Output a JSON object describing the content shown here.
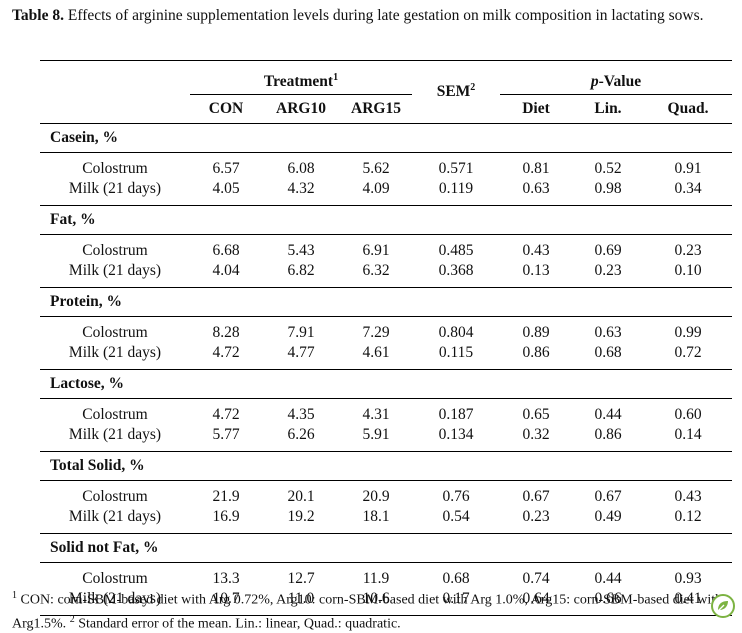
{
  "caption": {
    "label": "Table 8.",
    "text": "Effects of arginine supplementation levels during late gestation on milk composition in lactating sows."
  },
  "header": {
    "treatment": "Treatment",
    "treatment_sup": "1",
    "sem": "SEM",
    "sem_sup": "2",
    "pvalue_p": "p",
    "pvalue_rest": "-Value",
    "cols": [
      "CON",
      "ARG10",
      "ARG15",
      "Diet",
      "Lin.",
      "Quad."
    ]
  },
  "groups": [
    {
      "title": "Casein, %",
      "rows": [
        {
          "label": "Colostrum",
          "values": [
            "6.57",
            "6.08",
            "5.62",
            "0.571",
            "0.81",
            "0.52",
            "0.91"
          ]
        },
        {
          "label": "Milk (21 days)",
          "values": [
            "4.05",
            "4.32",
            "4.09",
            "0.119",
            "0.63",
            "0.98",
            "0.34"
          ]
        }
      ]
    },
    {
      "title": "Fat, %",
      "rows": [
        {
          "label": "Colostrum",
          "values": [
            "6.68",
            "5.43",
            "6.91",
            "0.485",
            "0.43",
            "0.69",
            "0.23"
          ]
        },
        {
          "label": "Milk (21 days)",
          "values": [
            "4.04",
            "6.82",
            "6.32",
            "0.368",
            "0.13",
            "0.23",
            "0.10"
          ]
        }
      ]
    },
    {
      "title": "Protein, %",
      "rows": [
        {
          "label": "Colostrum",
          "values": [
            "8.28",
            "7.91",
            "7.29",
            "0.804",
            "0.89",
            "0.63",
            "0.99"
          ]
        },
        {
          "label": "Milk (21 days)",
          "values": [
            "4.72",
            "4.77",
            "4.61",
            "0.115",
            "0.86",
            "0.68",
            "0.72"
          ]
        }
      ]
    },
    {
      "title": "Lactose, %",
      "rows": [
        {
          "label": "Colostrum",
          "values": [
            "4.72",
            "4.35",
            "4.31",
            "0.187",
            "0.65",
            "0.44",
            "0.60"
          ]
        },
        {
          "label": "Milk (21 days)",
          "values": [
            "5.77",
            "6.26",
            "5.91",
            "0.134",
            "0.32",
            "0.86",
            "0.14"
          ]
        }
      ]
    },
    {
      "title": "Total Solid, %",
      "rows": [
        {
          "label": "Colostrum",
          "values": [
            "21.9",
            "20.1",
            "20.9",
            "0.76",
            "0.67",
            "0.67",
            "0.43"
          ]
        },
        {
          "label": "Milk (21 days)",
          "values": [
            "16.9",
            "19.2",
            "18.1",
            "0.54",
            "0.23",
            "0.49",
            "0.12"
          ]
        }
      ]
    },
    {
      "title": "Solid not Fat, %",
      "rows": [
        {
          "label": "Colostrum",
          "values": [
            "13.3",
            "12.7",
            "11.9",
            "0.68",
            "0.74",
            "0.44",
            "0.93"
          ]
        },
        {
          "label": "Milk (21 days)",
          "values": [
            "10.7",
            "11.0",
            "10.6",
            "0.17",
            "0.64",
            "0.66",
            "0.41"
          ]
        }
      ]
    }
  ],
  "footnotes": {
    "sup1": "1",
    "text1": " CON: corn-SBM-based diet with Arg 0.72%, Arg10: corn-SBM-based diet with Arg 1.0%, Arg15: corn-SBM-based diet with Arg1.5%. ",
    "sup2": "2",
    "text2": " Standard error of the mean. Lin.: linear, Quad.: quadratic."
  },
  "colors": {
    "text": "#111111",
    "rule": "#000000",
    "logo": "#7cb342"
  },
  "icons": {
    "logo": "leaf-logo-icon"
  }
}
